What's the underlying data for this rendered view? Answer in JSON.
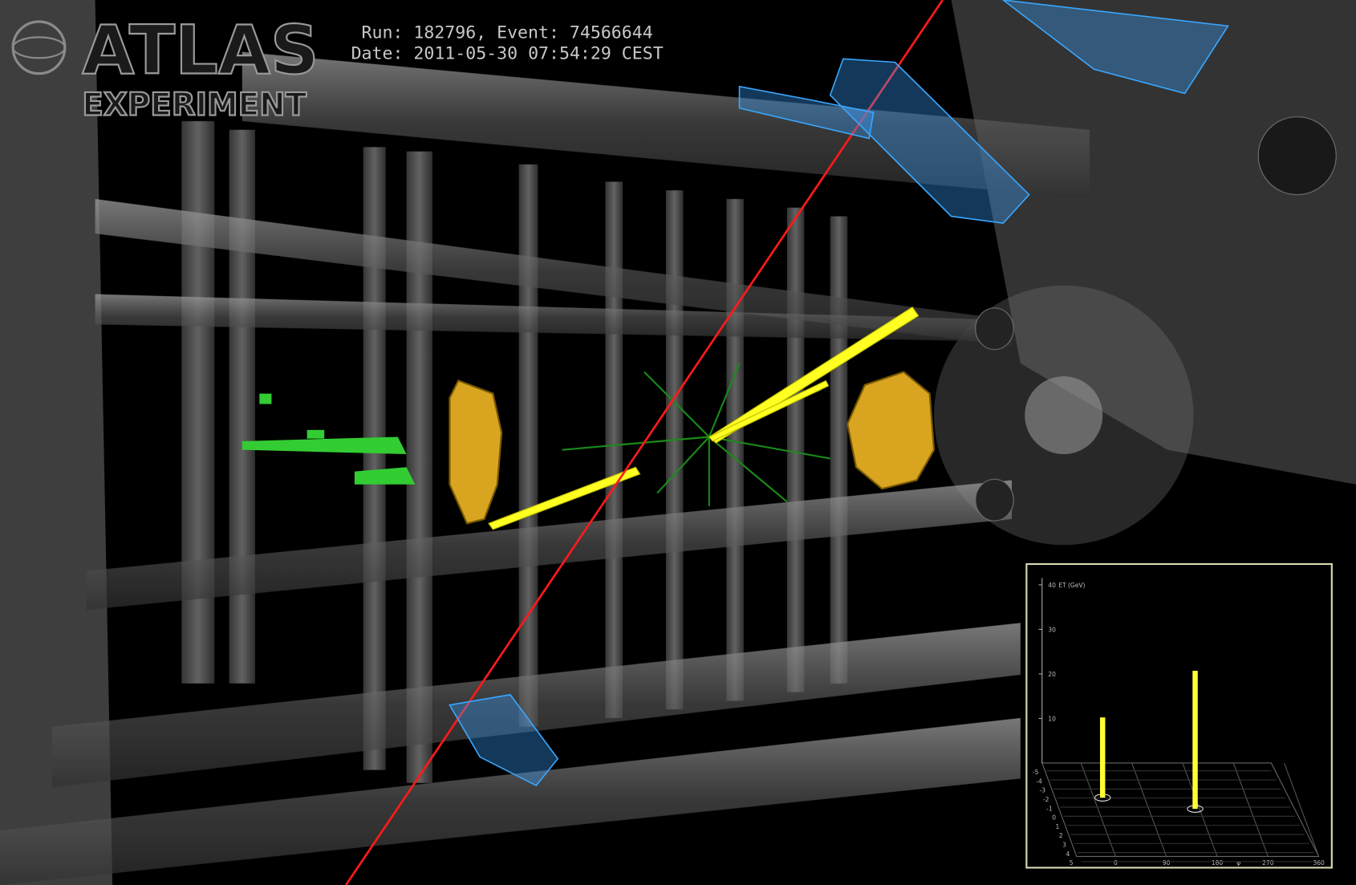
{
  "header": {
    "logo_top": "ATLAS",
    "logo_bottom": "EXPERIMENT",
    "run_line": "Run: 182796, Event: 74566644",
    "date_line": "Date: 2011-05-30 07:54:29 CEST"
  },
  "inset": {
    "y_label": "ET (GeV)",
    "ylim": [
      0,
      40
    ],
    "yticks": [
      10,
      20,
      30,
      40
    ],
    "x_label": "φ",
    "xlim": [
      0,
      360
    ],
    "xticks": [
      0,
      90,
      180,
      270,
      360
    ],
    "eta_ticks": [
      -5,
      -4,
      -3,
      -2,
      -1,
      0,
      1,
      2,
      3,
      4,
      5
    ],
    "bars": [
      18,
      31
    ],
    "bar_color": "#ffff33"
  }
}
